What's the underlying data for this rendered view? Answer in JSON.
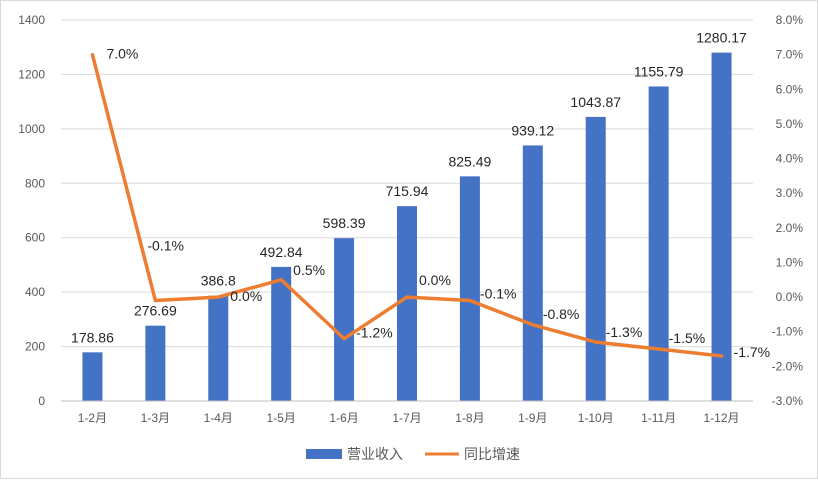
{
  "chart_data": {
    "type": "bar",
    "categories": [
      "1-2月",
      "1-3月",
      "1-4月",
      "1-5月",
      "1-6月",
      "1-7月",
      "1-8月",
      "1-9月",
      "1-10月",
      "1-11月",
      "1-12月"
    ],
    "series": [
      {
        "name": "营业收入",
        "type": "bar",
        "axis": "left",
        "color": "#4472C4",
        "values": [
          178.86,
          276.69,
          386.8,
          492.84,
          598.39,
          715.94,
          825.49,
          939.12,
          1043.87,
          1155.79,
          1280.17
        ],
        "labels": [
          "178.86",
          "276.69",
          "386.8",
          "492.84",
          "598.39",
          "715.94",
          "825.49",
          "939.12",
          "1043.87",
          "1155.79",
          "1280.17"
        ]
      },
      {
        "name": "同比增速",
        "type": "line",
        "axis": "right",
        "color": "#ED7D31",
        "values": [
          7.0,
          -0.1,
          0.0,
          0.5,
          -1.2,
          0.0,
          -0.1,
          -0.8,
          -1.3,
          -1.5,
          -1.7
        ],
        "labels": [
          "7.0%",
          "-0.1%",
          "0.0%",
          "0.5%",
          "-1.2%",
          "0.0%",
          "-0.1%",
          "-0.8%",
          "-1.3%",
          "-1.5%",
          "-1.7%"
        ]
      }
    ],
    "y_left": {
      "ylim": [
        0,
        1400
      ],
      "ticks": [
        "0",
        "200",
        "400",
        "600",
        "800",
        "1000",
        "1200",
        "1400"
      ]
    },
    "y_right": {
      "ylim": [
        -3.0,
        8.0
      ],
      "ticks": [
        "-3.0%",
        "-2.0%",
        "-1.0%",
        "0.0%",
        "1.0%",
        "2.0%",
        "3.0%",
        "4.0%",
        "5.0%",
        "6.0%",
        "7.0%",
        "8.0%"
      ]
    },
    "grid": true,
    "legend": {
      "position": "bottom"
    }
  }
}
